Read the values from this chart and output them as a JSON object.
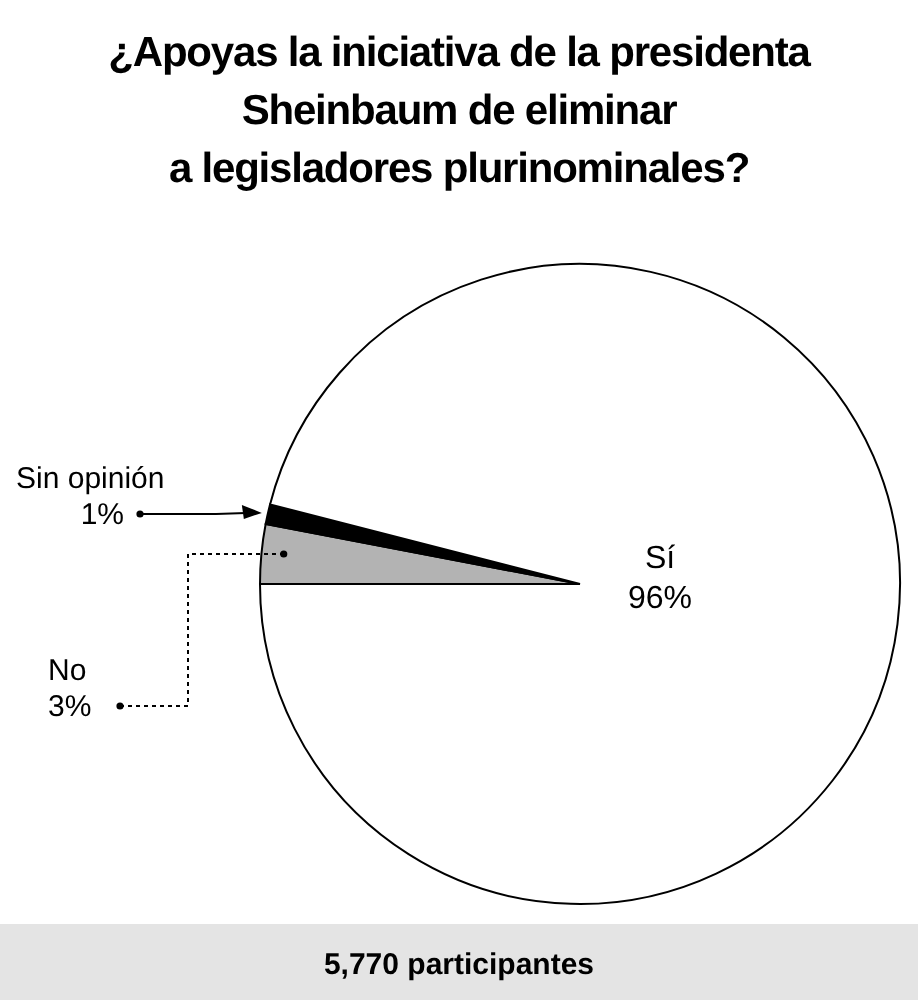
{
  "chart_data": {
    "type": "pie",
    "title": "¿Apoyas la iniciativa de la presidenta\nSheinbaum de eliminar\na legisladores plurinominales?",
    "categories": [
      "No",
      "Sin opinión",
      "Sí"
    ],
    "values": [
      3,
      1,
      96
    ],
    "colors": [
      "#b3b3b3",
      "#000000",
      "#ffffff"
    ],
    "value_labels": [
      "3%",
      "1%",
      "96%"
    ],
    "annotations": [
      "5,770 participantes"
    ]
  }
}
